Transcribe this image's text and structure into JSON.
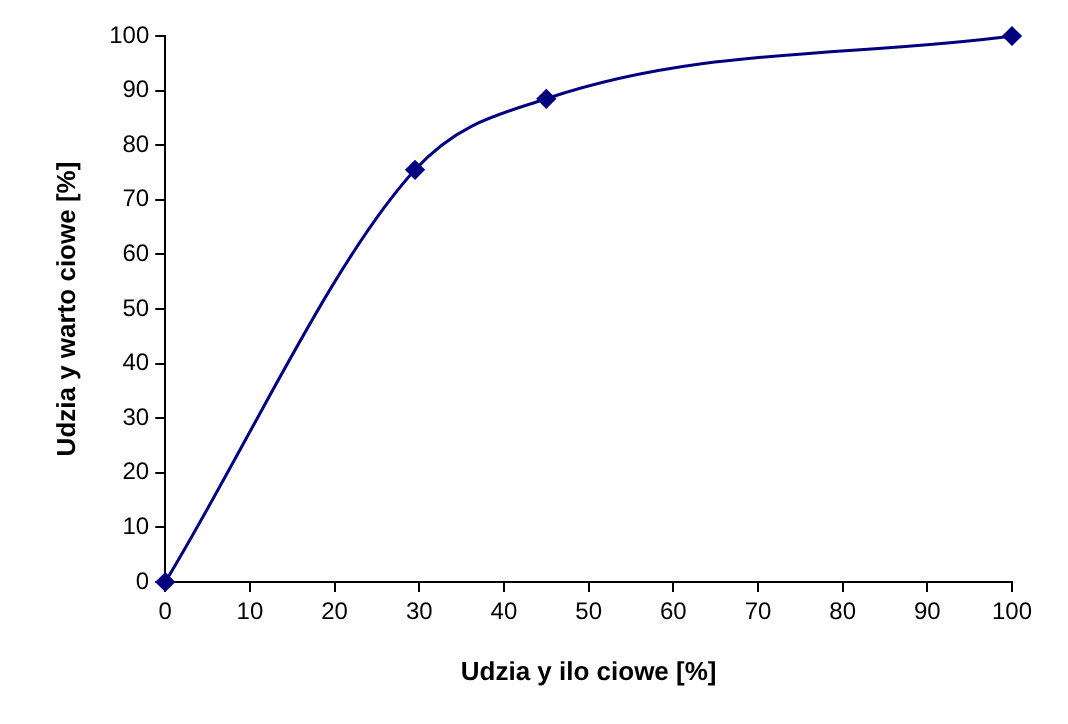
{
  "chart_data": {
    "type": "line",
    "xlabel": "Udzia y ilo ciowe [%]",
    "ylabel": "Udzia y warto ciowe [%]",
    "x": [
      0,
      29.5,
      45,
      100
    ],
    "series": [
      {
        "color": "#000080",
        "values": [
          0,
          75.5,
          88.5,
          100
        ]
      }
    ],
    "xlim": [
      0,
      100
    ],
    "xticks": [
      0,
      10,
      20,
      30,
      40,
      50,
      60,
      70,
      80,
      90,
      100
    ],
    "ylim": [
      0,
      100
    ],
    "yticks": [
      0,
      10,
      20,
      30,
      40,
      50,
      60,
      70,
      80,
      90,
      100
    ],
    "grid": false,
    "legend": false,
    "marker": "diamond",
    "line_style": "solid"
  }
}
